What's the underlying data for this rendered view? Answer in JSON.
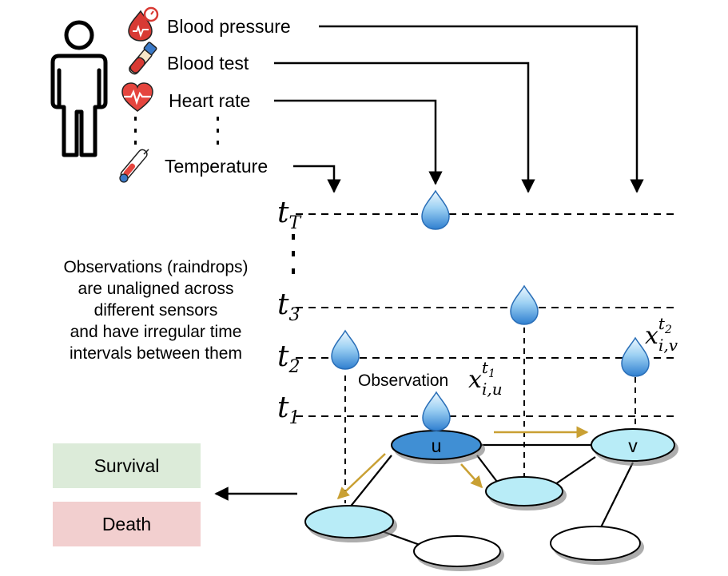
{
  "sensors": {
    "blood_pressure": "Blood pressure",
    "blood_test": "Blood test",
    "heart_rate": "Heart rate",
    "temperature": "Temperature"
  },
  "time_labels": {
    "tT": {
      "base": "t",
      "sub": "T"
    },
    "t3": {
      "base": "t",
      "sub": "3"
    },
    "t2": {
      "base": "t",
      "sub": "2"
    },
    "t1": {
      "base": "t",
      "sub": "1"
    }
  },
  "caption_lines": [
    "Observations (raindrops)",
    "are unaligned across",
    "different sensors",
    "and have irregular time",
    "intervals between them"
  ],
  "observation_label": "Observation",
  "obs_u": {
    "base": "x",
    "sup": "t",
    "sup_sub": "1",
    "sub": "i,u"
  },
  "obs_v": {
    "base": "x",
    "sup": "t",
    "sup_sub": "2",
    "sub": "i,v"
  },
  "nodes": {
    "u": "u",
    "v": "v"
  },
  "outcomes": {
    "survival": "Survival",
    "death": "Death"
  },
  "colors": {
    "survival_bg": "#dcebd9",
    "death_bg": "#f2cfcf",
    "node_u": "#3f8fd4",
    "node_light": "#b8ecf7",
    "drop_top": "#e8f5fd",
    "drop_bottom": "#2f7fd0",
    "arrow_gold": "#c9a033"
  },
  "icons": [
    "person-icon",
    "blood-pressure-icon",
    "blood-test-icon",
    "heart-rate-icon",
    "thermometer-icon"
  ]
}
